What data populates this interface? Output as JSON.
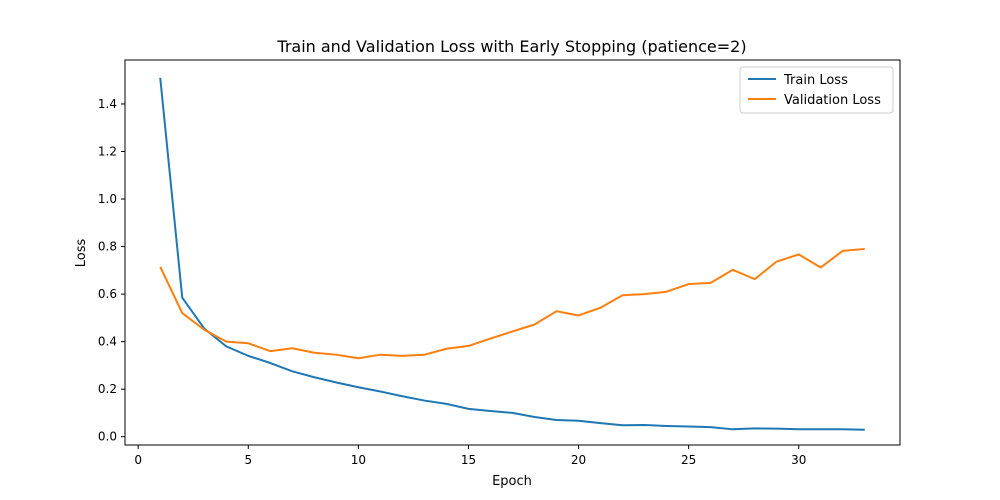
{
  "chart_data": {
    "type": "line",
    "title": "Train and Validation Loss with Early Stopping (patience=2)",
    "xlabel": "Epoch",
    "ylabel": "Loss",
    "xlim": [
      -0.6,
      34.6
    ],
    "ylim": [
      -0.035,
      1.585
    ],
    "xticks": [
      0,
      5,
      10,
      15,
      20,
      25,
      30
    ],
    "yticks": [
      0.0,
      0.2,
      0.4,
      0.6,
      0.8,
      1.0,
      1.2,
      1.4
    ],
    "ytick_labels": [
      "0.0",
      "0.2",
      "0.4",
      "0.6",
      "0.8",
      "1.0",
      "1.2",
      "1.4"
    ],
    "grid": false,
    "legend_position": "top-right",
    "x": [
      1,
      2,
      3,
      4,
      5,
      6,
      7,
      8,
      9,
      10,
      11,
      12,
      13,
      14,
      15,
      16,
      17,
      18,
      19,
      20,
      21,
      22,
      23,
      24,
      25,
      26,
      27,
      28,
      29,
      30,
      31,
      32,
      33
    ],
    "series": [
      {
        "name": "Train Loss",
        "color": "#1f77b4",
        "values": [
          1.51,
          0.585,
          0.455,
          0.38,
          0.34,
          0.31,
          0.275,
          0.25,
          0.228,
          0.208,
          0.19,
          0.17,
          0.152,
          0.138,
          0.117,
          0.108,
          0.1,
          0.083,
          0.07,
          0.067,
          0.057,
          0.048,
          0.049,
          0.045,
          0.043,
          0.04,
          0.031,
          0.035,
          0.034,
          0.031,
          0.031,
          0.031,
          0.029
        ]
      },
      {
        "name": "Validation Loss",
        "color": "#ff7f0e",
        "values": [
          0.715,
          0.52,
          0.45,
          0.4,
          0.393,
          0.36,
          0.372,
          0.353,
          0.345,
          0.33,
          0.345,
          0.34,
          0.345,
          0.37,
          0.382,
          0.413,
          0.443,
          0.472,
          0.528,
          0.51,
          0.543,
          0.595,
          0.6,
          0.61,
          0.642,
          0.647,
          0.702,
          0.663,
          0.737,
          0.767,
          0.712,
          0.782,
          0.79
        ]
      }
    ]
  }
}
